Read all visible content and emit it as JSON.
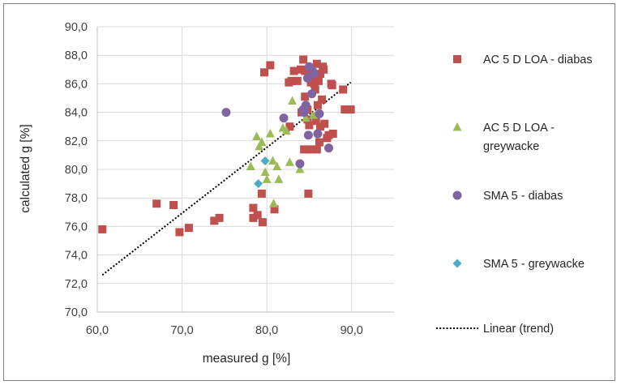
{
  "chart_data": {
    "type": "scatter",
    "title": "",
    "xlabel": "measured g [%]",
    "ylabel": "calculated g [%]",
    "xlim": [
      60,
      95
    ],
    "ylim": [
      70,
      90
    ],
    "x_ticks": [
      "60,0",
      "70,0",
      "80,0",
      "90,0"
    ],
    "y_ticks": [
      "70,0",
      "72,0",
      "74,0",
      "76,0",
      "78,0",
      "80,0",
      "82,0",
      "84,0",
      "86,0",
      "88,0",
      "90,0"
    ],
    "vertical_gridlines": true,
    "horizontal_gridlines": true,
    "legend_position": "right",
    "series": [
      {
        "name": "AC 5 D LOA - diabas",
        "marker": "square",
        "color": "#c0504d",
        "points": [
          [
            60.6,
            75.8
          ],
          [
            67.0,
            77.6
          ],
          [
            69.0,
            77.5
          ],
          [
            69.7,
            75.6
          ],
          [
            70.8,
            75.9
          ],
          [
            73.8,
            76.4
          ],
          [
            74.4,
            76.6
          ],
          [
            78.4,
            77.3
          ],
          [
            78.4,
            76.6
          ],
          [
            78.9,
            76.8
          ],
          [
            79.4,
            78.3
          ],
          [
            79.5,
            76.3
          ],
          [
            79.7,
            86.8
          ],
          [
            80.4,
            87.3
          ],
          [
            80.9,
            77.2
          ],
          [
            82.6,
            86.1
          ],
          [
            82.7,
            83.0
          ],
          [
            82.9,
            86.2
          ],
          [
            83.2,
            86.9
          ],
          [
            83.6,
            86.2
          ],
          [
            84.0,
            87.0
          ],
          [
            84.1,
            84.0
          ],
          [
            84.3,
            87.7
          ],
          [
            84.5,
            86.9
          ],
          [
            84.4,
            81.4
          ],
          [
            84.5,
            85.1
          ],
          [
            84.8,
            84.2
          ],
          [
            84.8,
            83.5
          ],
          [
            84.9,
            78.3
          ],
          [
            85.0,
            83.1
          ],
          [
            85.2,
            86.1
          ],
          [
            85.2,
            81.4
          ],
          [
            85.4,
            86.6
          ],
          [
            85.6,
            86.0
          ],
          [
            85.7,
            85.6
          ],
          [
            85.8,
            83.4
          ],
          [
            85.9,
            87.4
          ],
          [
            85.9,
            81.4
          ],
          [
            86.0,
            84.5
          ],
          [
            86.1,
            86.2
          ],
          [
            86.2,
            81.9
          ],
          [
            86.3,
            83.0
          ],
          [
            86.3,
            86.7
          ],
          [
            86.5,
            84.9
          ],
          [
            86.6,
            87.2
          ],
          [
            86.7,
            87.0
          ],
          [
            86.8,
            83.2
          ],
          [
            87.1,
            82.2
          ],
          [
            87.3,
            82.4
          ],
          [
            87.6,
            86.0
          ],
          [
            87.7,
            85.9
          ],
          [
            87.8,
            82.5
          ],
          [
            89.0,
            85.6
          ],
          [
            89.2,
            84.2
          ],
          [
            89.9,
            84.2
          ]
        ]
      },
      {
        "name": "AC 5 D LOA - greywacke",
        "marker": "triangle",
        "color": "#9bbb59",
        "points": [
          [
            78.1,
            80.2
          ],
          [
            78.8,
            82.3
          ],
          [
            79.1,
            81.6
          ],
          [
            79.4,
            81.9
          ],
          [
            79.8,
            79.8
          ],
          [
            80.0,
            79.3
          ],
          [
            80.4,
            82.5
          ],
          [
            80.7,
            80.6
          ],
          [
            80.8,
            77.6
          ],
          [
            81.2,
            80.2
          ],
          [
            81.4,
            79.3
          ],
          [
            81.9,
            82.9
          ],
          [
            82.3,
            82.7
          ],
          [
            82.7,
            80.5
          ],
          [
            83.0,
            84.8
          ],
          [
            83.9,
            80.0
          ],
          [
            84.6,
            83.6
          ],
          [
            85.5,
            83.8
          ]
        ]
      },
      {
        "name": "SMA 5 - diabas",
        "marker": "circle",
        "color": "#8064a2",
        "points": [
          [
            75.2,
            84.0
          ],
          [
            82.0,
            83.6
          ],
          [
            83.9,
            80.4
          ],
          [
            84.3,
            84.2
          ],
          [
            84.4,
            84.0
          ],
          [
            84.6,
            84.5
          ],
          [
            84.8,
            86.4
          ],
          [
            84.9,
            82.4
          ],
          [
            85.0,
            87.2
          ],
          [
            85.3,
            85.3
          ],
          [
            85.4,
            86.9
          ],
          [
            85.6,
            86.7
          ],
          [
            86.0,
            82.5
          ],
          [
            86.2,
            83.9
          ],
          [
            87.3,
            81.5
          ]
        ]
      },
      {
        "name": "SMA 5 - greywacke",
        "marker": "diamond",
        "color": "#4bacc6",
        "points": [
          [
            79.0,
            79.0
          ],
          [
            79.8,
            80.6
          ]
        ]
      }
    ],
    "trendline": {
      "name": "Linear (trend)",
      "style": "dotted",
      "color": "#000000",
      "from": [
        60.6,
        72.6
      ],
      "to": [
        89.9,
        86.1
      ]
    }
  }
}
